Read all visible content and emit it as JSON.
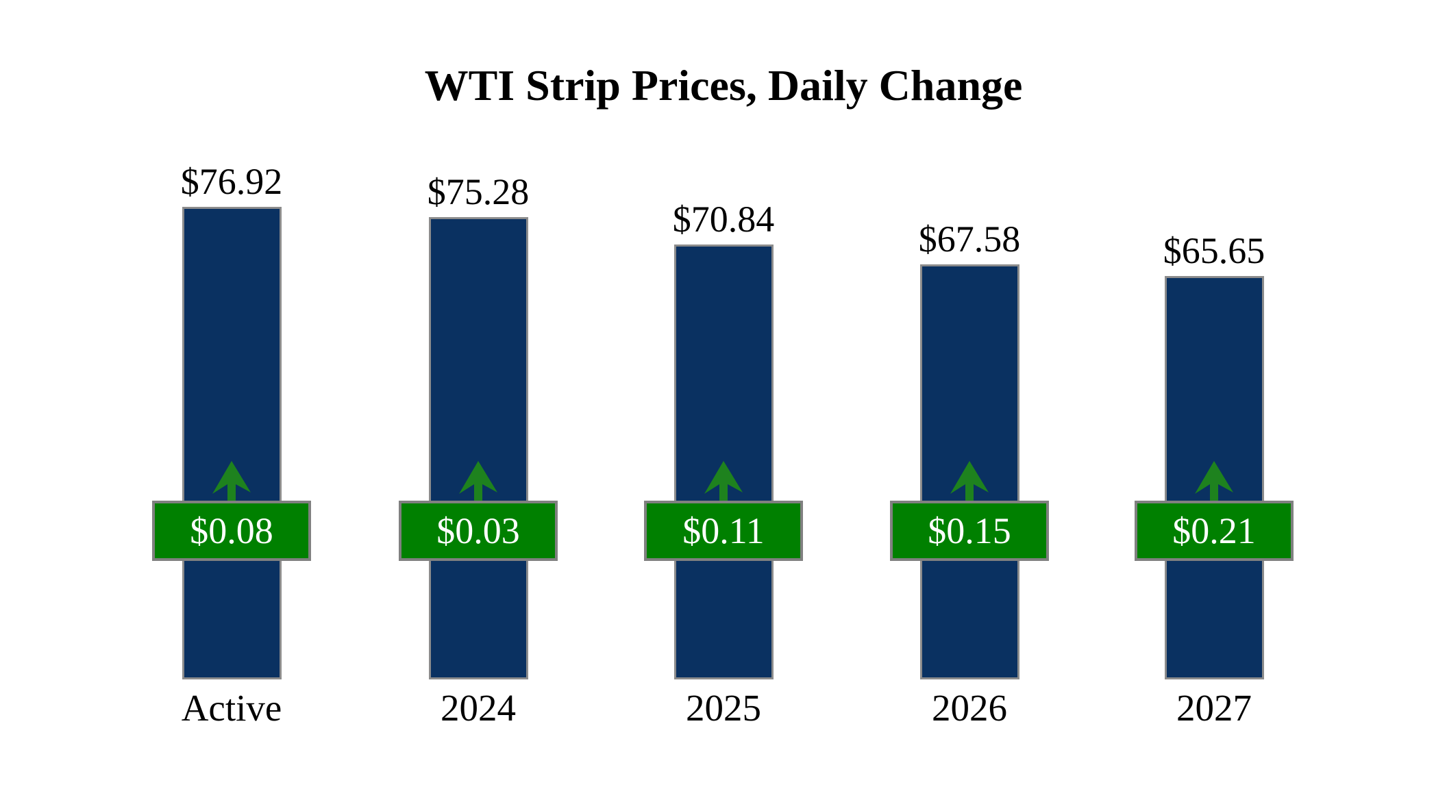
{
  "title": "WTI Strip Prices, Daily Change",
  "colors": {
    "background": "#ffffff",
    "bar_fill": "#0a3161",
    "bar_border": "#8c8c8c",
    "change_fill": "#008000",
    "change_border": "#808080",
    "change_text": "#ffffff",
    "arrow": "#1e821e",
    "label_text": "#000000"
  },
  "chart_data": {
    "type": "bar",
    "title": "WTI Strip Prices, Daily Change",
    "xlabel": "",
    "ylabel": "",
    "ylim": [
      0,
      80
    ],
    "grid": false,
    "legend": "none",
    "categories": [
      "Active",
      "2024",
      "2025",
      "2026",
      "2027"
    ],
    "series": [
      {
        "name": "Strip Price",
        "values": [
          76.92,
          75.28,
          70.84,
          67.58,
          65.65
        ],
        "labels": [
          "$76.92",
          "$75.28",
          "$70.84",
          "$67.58",
          "$65.65"
        ]
      },
      {
        "name": "Daily Change",
        "values": [
          0.08,
          0.03,
          0.11,
          0.15,
          0.21
        ],
        "labels": [
          "$0.08",
          "$0.03",
          "$0.11",
          "$0.15",
          "$0.21"
        ],
        "direction": "up"
      }
    ]
  }
}
